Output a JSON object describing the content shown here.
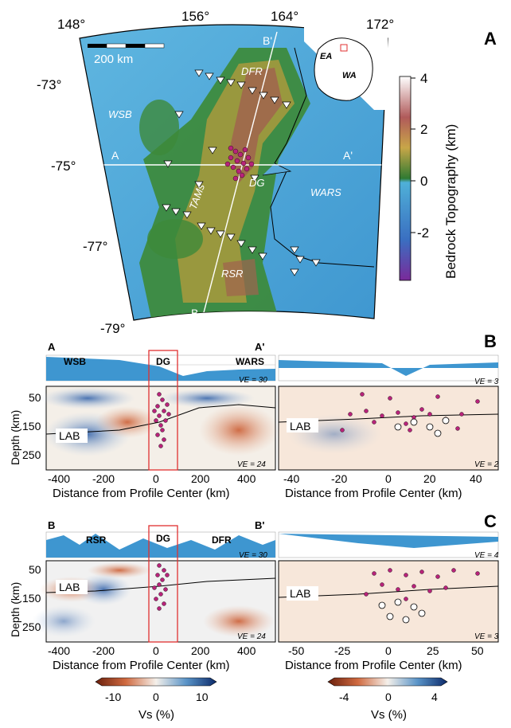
{
  "panel_a": {
    "letter": "A",
    "lon_ticks": [
      "148°",
      "156°",
      "164°",
      "172°"
    ],
    "lat_ticks": [
      "-73°",
      "-75°",
      "-77°",
      "-79°"
    ],
    "scale": "200 km",
    "labels": {
      "dfr": "DFR",
      "wsb": "WSB",
      "tams": "TAMs",
      "dg": "DG",
      "wars": "WARS",
      "rsr": "RSR",
      "a": "A",
      "a_prime": "A'",
      "b": "B",
      "b_prime": "B'"
    },
    "inset": {
      "ea": "EA",
      "wa": "WA"
    },
    "colorbar": {
      "label": "Bedrock Topography (km)",
      "ticks": [
        "4",
        "2",
        "0",
        "-2"
      ],
      "colors": [
        "#ffffff",
        "#b05a5a",
        "#c8a648",
        "#2f7a32",
        "#4fb0d8",
        "#3a6fc1",
        "#7a2a9a"
      ]
    }
  },
  "panel_b": {
    "letter": "B",
    "left": {
      "start": "A",
      "end": "A'",
      "region_left": "WSB",
      "region_mid": "DG",
      "region_right": "WARS",
      "ve_top": "VE = 30",
      "ve_bottom": "VE = 24",
      "lab": "LAB",
      "ylabel": "Depth (km)",
      "yticks": [
        "50",
        "150",
        "250"
      ],
      "xlabel": "Distance from Profile Center (km)",
      "xticks": [
        "-400",
        "-200",
        "0",
        "200",
        "400"
      ]
    },
    "right": {
      "ve_top": "VE = 3",
      "ve_bottom": "VE = 2",
      "lab": "LAB",
      "xlabel": "Distance from Profile Center (km)",
      "xticks": [
        "-40",
        "-20",
        "0",
        "20",
        "40"
      ]
    }
  },
  "panel_c": {
    "letter": "C",
    "left": {
      "start": "B",
      "end": "B'",
      "region_left": "RSR",
      "region_mid": "DG",
      "region_right": "DFR",
      "ve_top": "VE = 30",
      "ve_bottom": "VE = 24",
      "lab": "LAB",
      "ylabel": "Depth (km)",
      "yticks": [
        "50",
        "150",
        "250"
      ],
      "xlabel": "Distance from Profile Center (km)",
      "xticks": [
        "-400",
        "-200",
        "0",
        "200",
        "400"
      ]
    },
    "right": {
      "ve_top": "VE = 4",
      "ve_bottom": "VE = 3",
      "lab": "LAB",
      "xlabel": "Distance from Profile Center (km)",
      "xticks": [
        "-50",
        "-25",
        "0",
        "25",
        "50"
      ]
    }
  },
  "colorbars": {
    "left": {
      "ticks": [
        "-10",
        "0",
        "10"
      ],
      "label": "Vs (%)"
    },
    "right": {
      "ticks": [
        "-4",
        "0",
        "4"
      ],
      "label": "Vs (%)"
    }
  }
}
